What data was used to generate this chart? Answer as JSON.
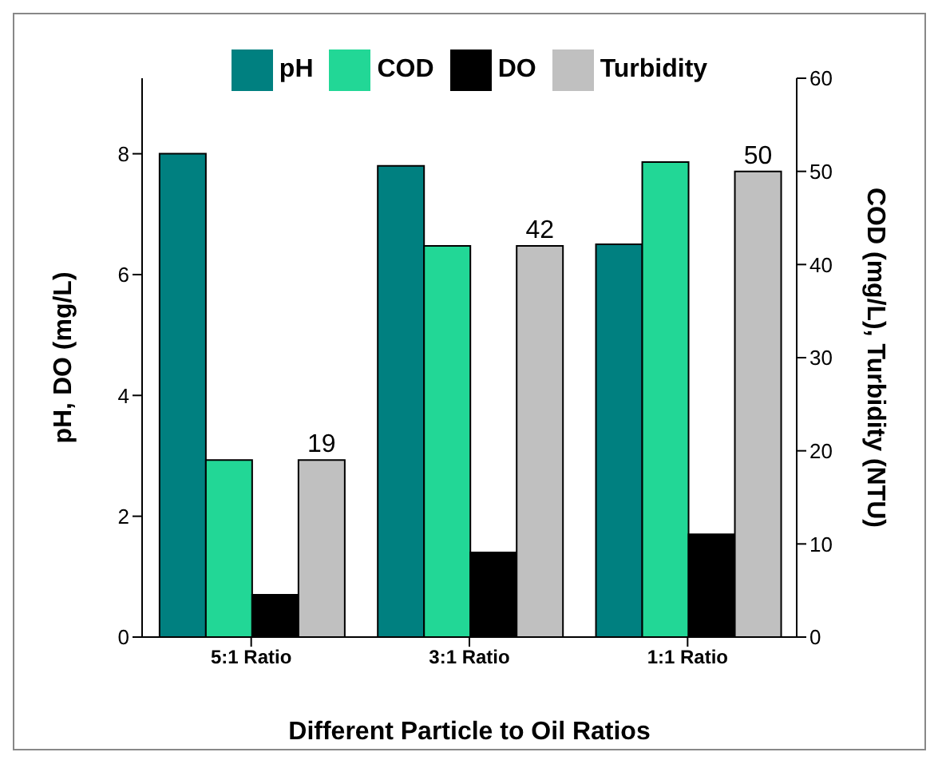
{
  "chart_data": {
    "type": "bar",
    "xlabel": "Different Particle to Oil Ratios",
    "ylabel": "pH, DO (mg/L)",
    "y2label": "COD (mg/L), Turbidity (NTU)",
    "categories": [
      "5:1 Ratio",
      "3:1 Ratio",
      "1:1 Ratio"
    ],
    "series": [
      {
        "name": "pH",
        "color": "#008080",
        "values": [
          8.0,
          7.8,
          6.5
        ]
      },
      {
        "name": "COD",
        "color": "#22d796",
        "values": [
          19,
          42,
          51
        ],
        "axis": "y2"
      },
      {
        "name": "DO",
        "color": "#000000",
        "values": [
          0.7,
          1.4,
          1.7
        ]
      },
      {
        "name": "Turbidity",
        "color": "#c0c0c0",
        "values": [
          19,
          42,
          50
        ],
        "axis": "y2",
        "value_labels": [
          "19",
          "42",
          "50"
        ]
      }
    ],
    "ylim": [
      0,
      9.25
    ],
    "yticks": [
      0,
      2,
      4,
      6,
      8
    ],
    "y2lim": [
      0,
      60
    ],
    "y2ticks": [
      0,
      10,
      20,
      30,
      40,
      50,
      60
    ],
    "legend": "top",
    "grid": false
  }
}
